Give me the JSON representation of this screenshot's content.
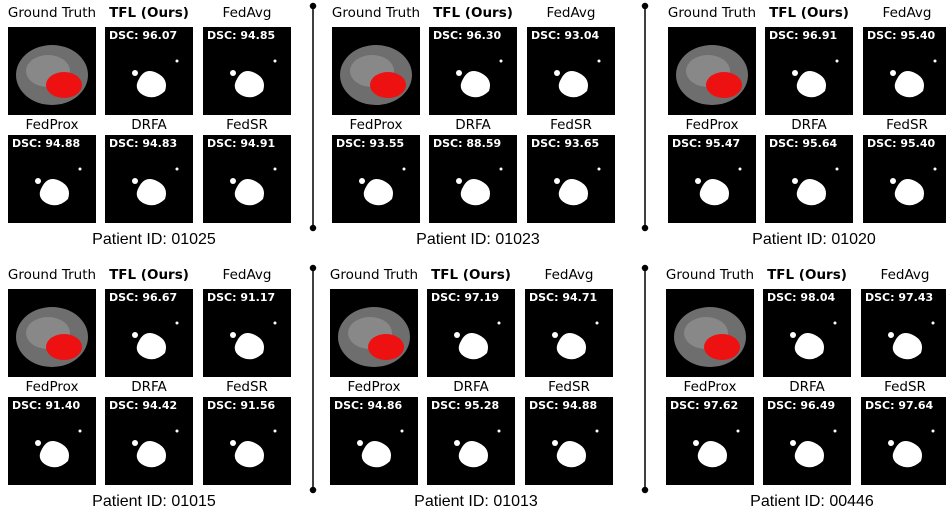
{
  "panels": [
    {
      "patient": "Patient ID: 01025",
      "cells": [
        {
          "title": "Ground Truth"
        },
        {
          "title": "TFL (Ours)",
          "dsc": "DSC: 96.07"
        },
        {
          "title": "FedAvg",
          "dsc": "DSC: 94.85"
        },
        {
          "title": "FedProx",
          "dsc": "DSC: 94.88"
        },
        {
          "title": "DRFA",
          "dsc": "DSC: 94.83"
        },
        {
          "title": "FedSR",
          "dsc": "DSC: 94.91"
        }
      ]
    },
    {
      "patient": "Patient ID: 01023",
      "cells": [
        {
          "title": "Ground Truth"
        },
        {
          "title": "TFL (Ours)",
          "dsc": "DSC: 96.30"
        },
        {
          "title": "FedAvg",
          "dsc": "DSC: 93.04"
        },
        {
          "title": "FedProx",
          "dsc": "DSC: 93.55"
        },
        {
          "title": "DRFA",
          "dsc": "DSC: 88.59"
        },
        {
          "title": "FedSR",
          "dsc": "DSC: 93.65"
        }
      ]
    },
    {
      "patient": "Patient ID: 01020",
      "cells": [
        {
          "title": "Ground Truth"
        },
        {
          "title": "TFL (Ours)",
          "dsc": "DSC: 96.91"
        },
        {
          "title": "FedAvg",
          "dsc": "DSC: 95.40"
        },
        {
          "title": "FedProx",
          "dsc": "DSC: 95.47"
        },
        {
          "title": "DRFA",
          "dsc": "DSC: 95.64"
        },
        {
          "title": "FedSR",
          "dsc": "DSC: 95.40"
        }
      ]
    },
    {
      "patient": "Patient ID: 01015",
      "cells": [
        {
          "title": "Ground Truth"
        },
        {
          "title": "TFL (Ours)",
          "dsc": "DSC: 96.67"
        },
        {
          "title": "FedAvg",
          "dsc": "DSC: 91.17"
        },
        {
          "title": "FedProx",
          "dsc": "DSC: 91.40"
        },
        {
          "title": "DRFA",
          "dsc": "DSC: 94.42"
        },
        {
          "title": "FedSR",
          "dsc": "DSC: 91.56"
        }
      ]
    },
    {
      "patient": "Patient ID: 01013",
      "cells": [
        {
          "title": "Ground Truth"
        },
        {
          "title": "TFL (Ours)",
          "dsc": "DSC: 97.19"
        },
        {
          "title": "FedAvg",
          "dsc": "DSC: 94.71"
        },
        {
          "title": "FedProx",
          "dsc": "DSC: 94.86"
        },
        {
          "title": "DRFA",
          "dsc": "DSC: 95.28"
        },
        {
          "title": "FedSR",
          "dsc": "DSC: 94.88"
        }
      ]
    },
    {
      "patient": "Patient ID: 00446",
      "cells": [
        {
          "title": "Ground Truth"
        },
        {
          "title": "TFL (Ours)",
          "dsc": "DSC: 98.04"
        },
        {
          "title": "FedAvg",
          "dsc": "DSC: 97.43"
        },
        {
          "title": "FedProx",
          "dsc": "DSC: 97.62"
        },
        {
          "title": "DRFA",
          "dsc": "DSC: 96.49"
        },
        {
          "title": "FedSR",
          "dsc": "DSC: 97.64"
        }
      ]
    }
  ]
}
